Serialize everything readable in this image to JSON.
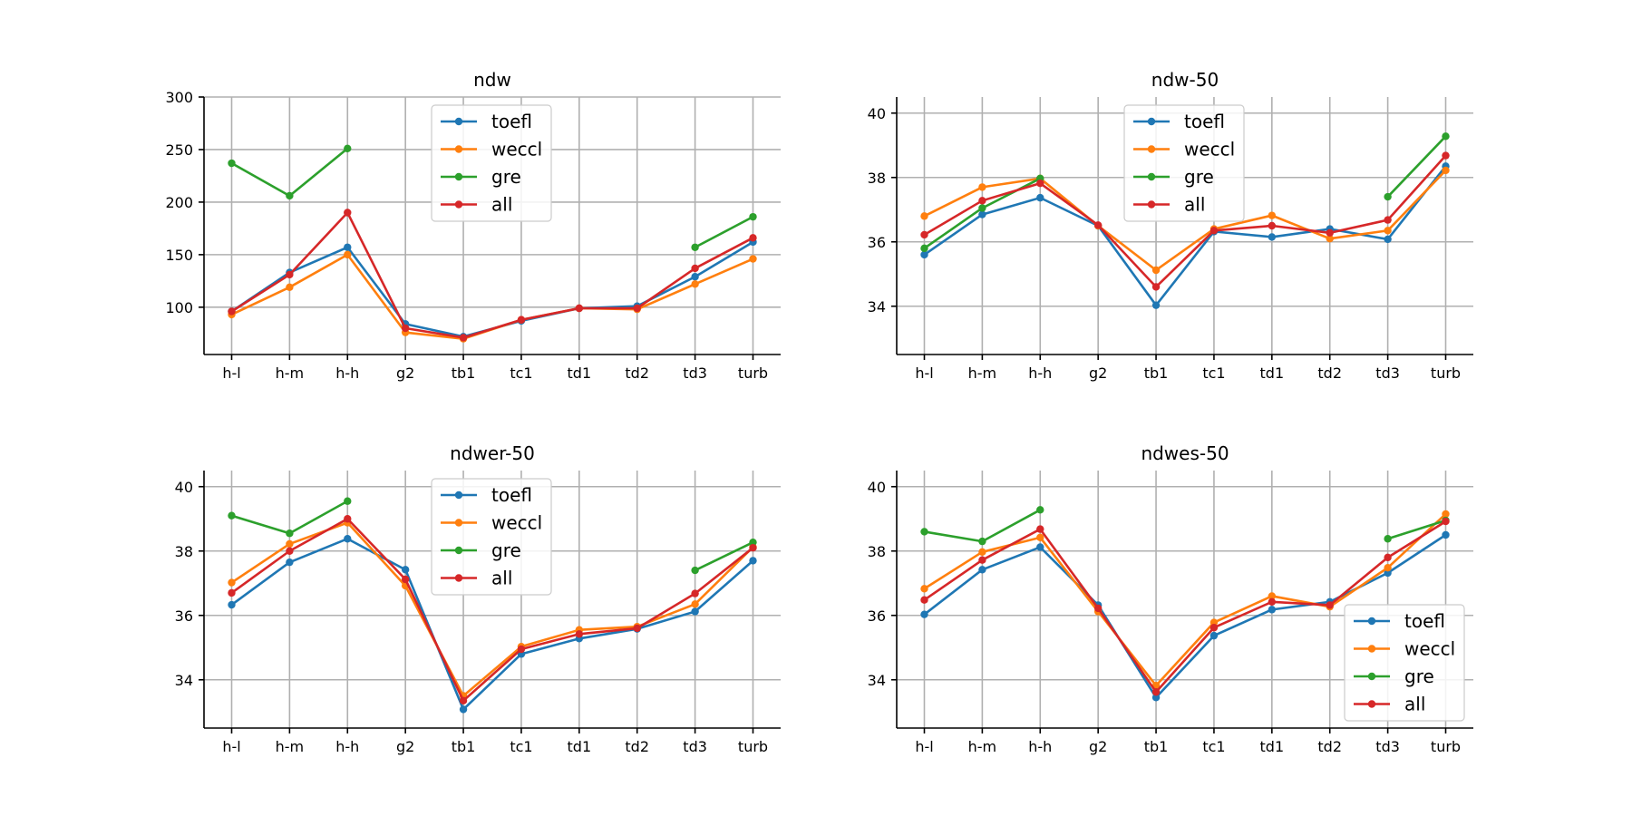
{
  "series_colors": {
    "toefl": "#1f77b4",
    "weccl": "#ff7f0e",
    "gre": "#2ca02c",
    "all": "#d62728"
  },
  "chart_data": [
    {
      "type": "line",
      "title": "ndw",
      "categories": [
        "h-l",
        "h-m",
        "h-h",
        "g2",
        "tb1",
        "tc1",
        "td1",
        "td2",
        "td3",
        "turb"
      ],
      "ylim": [
        55,
        300
      ],
      "yticks": [
        100,
        150,
        200,
        250,
        300
      ],
      "legend_position": "upper-center",
      "series": [
        {
          "name": "toefl",
          "values": [
            96,
            133,
            157,
            84,
            72,
            87,
            99,
            101,
            129,
            162
          ]
        },
        {
          "name": "weccl",
          "values": [
            93,
            119,
            150,
            76,
            70,
            88,
            99,
            98,
            122,
            146
          ]
        },
        {
          "name": "gre",
          "values": [
            237,
            206,
            251,
            null,
            null,
            null,
            null,
            null,
            157,
            186
          ]
        },
        {
          "name": "all",
          "values": [
            96,
            131,
            190,
            80,
            71,
            88,
            99,
            99,
            137,
            166
          ]
        }
      ]
    },
    {
      "type": "line",
      "title": "ndw-50",
      "categories": [
        "h-l",
        "h-m",
        "h-h",
        "g2",
        "tb1",
        "tc1",
        "td1",
        "td2",
        "td3",
        "turb"
      ],
      "ylim": [
        32.5,
        40.5
      ],
      "yticks": [
        34,
        36,
        38,
        40
      ],
      "legend_position": "upper-center",
      "series": [
        {
          "name": "toefl",
          "values": [
            35.6,
            36.85,
            37.37,
            36.5,
            34.03,
            36.32,
            36.15,
            36.4,
            36.08,
            38.35
          ]
        },
        {
          "name": "weccl",
          "values": [
            36.8,
            37.7,
            37.97,
            36.5,
            35.12,
            36.4,
            36.82,
            36.1,
            36.35,
            38.22
          ]
        },
        {
          "name": "gre",
          "values": [
            35.8,
            37.05,
            37.97,
            null,
            null,
            null,
            null,
            null,
            37.4,
            39.28
          ]
        },
        {
          "name": "all",
          "values": [
            36.22,
            37.28,
            37.82,
            36.52,
            34.6,
            36.35,
            36.5,
            36.28,
            36.68,
            38.68
          ]
        }
      ]
    },
    {
      "type": "line",
      "title": "ndwer-50",
      "categories": [
        "h-l",
        "h-m",
        "h-h",
        "g2",
        "tb1",
        "tc1",
        "td1",
        "td2",
        "td3",
        "turb"
      ],
      "ylim": [
        32.5,
        40.5
      ],
      "yticks": [
        34,
        36,
        38,
        40
      ],
      "legend_position": "upper-center",
      "series": [
        {
          "name": "toefl",
          "values": [
            36.33,
            37.65,
            38.38,
            37.42,
            33.08,
            34.8,
            35.28,
            35.58,
            36.12,
            37.7
          ]
        },
        {
          "name": "weccl",
          "values": [
            37.02,
            38.22,
            38.88,
            36.92,
            33.5,
            35.03,
            35.55,
            35.65,
            36.35,
            38.12
          ]
        },
        {
          "name": "gre",
          "values": [
            39.1,
            38.55,
            39.55,
            null,
            null,
            null,
            null,
            null,
            37.4,
            38.27
          ]
        },
        {
          "name": "all",
          "values": [
            36.7,
            38.0,
            39.0,
            37.12,
            33.35,
            34.95,
            35.42,
            35.6,
            36.68,
            38.1
          ]
        }
      ]
    },
    {
      "type": "line",
      "title": "ndwes-50",
      "categories": [
        "h-l",
        "h-m",
        "h-h",
        "g2",
        "tb1",
        "tc1",
        "td1",
        "td2",
        "td3",
        "turb"
      ],
      "ylim": [
        32.5,
        40.5
      ],
      "yticks": [
        34,
        36,
        38,
        40
      ],
      "legend_position": "lower-right",
      "series": [
        {
          "name": "toefl",
          "values": [
            36.03,
            37.42,
            38.12,
            36.32,
            33.45,
            35.37,
            36.18,
            36.42,
            37.32,
            38.5
          ]
        },
        {
          "name": "weccl",
          "values": [
            36.83,
            37.97,
            38.42,
            36.12,
            33.82,
            35.78,
            36.6,
            36.27,
            37.48,
            39.15
          ]
        },
        {
          "name": "gre",
          "values": [
            38.6,
            38.3,
            39.28,
            null,
            null,
            null,
            null,
            null,
            38.38,
            38.95
          ]
        },
        {
          "name": "all",
          "values": [
            36.48,
            37.72,
            38.68,
            36.22,
            33.62,
            35.62,
            36.42,
            36.32,
            37.8,
            38.92
          ]
        }
      ]
    }
  ]
}
